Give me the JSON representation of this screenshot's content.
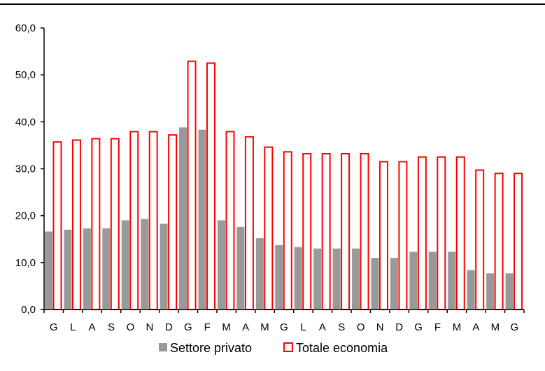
{
  "chart_data": {
    "type": "bar",
    "title": "",
    "xlabel": "",
    "ylabel": "",
    "ylim": [
      0,
      60
    ],
    "yticks": [
      "0,0",
      "10,0",
      "20,0",
      "30,0",
      "40,0",
      "50,0",
      "60,0"
    ],
    "categories": [
      "G",
      "L",
      "A",
      "S",
      "O",
      "N",
      "D",
      "G",
      "F",
      "M",
      "A",
      "M",
      "G",
      "L",
      "A",
      "S",
      "O",
      "N",
      "D",
      "G",
      "F",
      "M",
      "A",
      "M",
      "G"
    ],
    "series": [
      {
        "name": "Settore privato",
        "color": "#999999",
        "style": "filled",
        "values": [
          16.6,
          17.0,
          17.3,
          17.3,
          19.0,
          19.3,
          18.3,
          38.8,
          38.3,
          19.0,
          17.6,
          15.2,
          13.7,
          13.3,
          13.0,
          13.0,
          13.0,
          11.0,
          11.0,
          12.3,
          12.3,
          12.3,
          8.4,
          7.7,
          7.7
        ]
      },
      {
        "name": "Totale economia",
        "color": "#ff0000",
        "style": "outline",
        "values": [
          35.7,
          36.1,
          36.4,
          36.4,
          37.9,
          37.9,
          37.2,
          52.9,
          52.5,
          37.9,
          36.8,
          34.6,
          33.6,
          33.2,
          33.2,
          33.2,
          33.2,
          31.5,
          31.5,
          32.5,
          32.5,
          32.5,
          29.7,
          29.0,
          29.0
        ]
      }
    ],
    "legend": "bottom-center",
    "grid": false
  }
}
